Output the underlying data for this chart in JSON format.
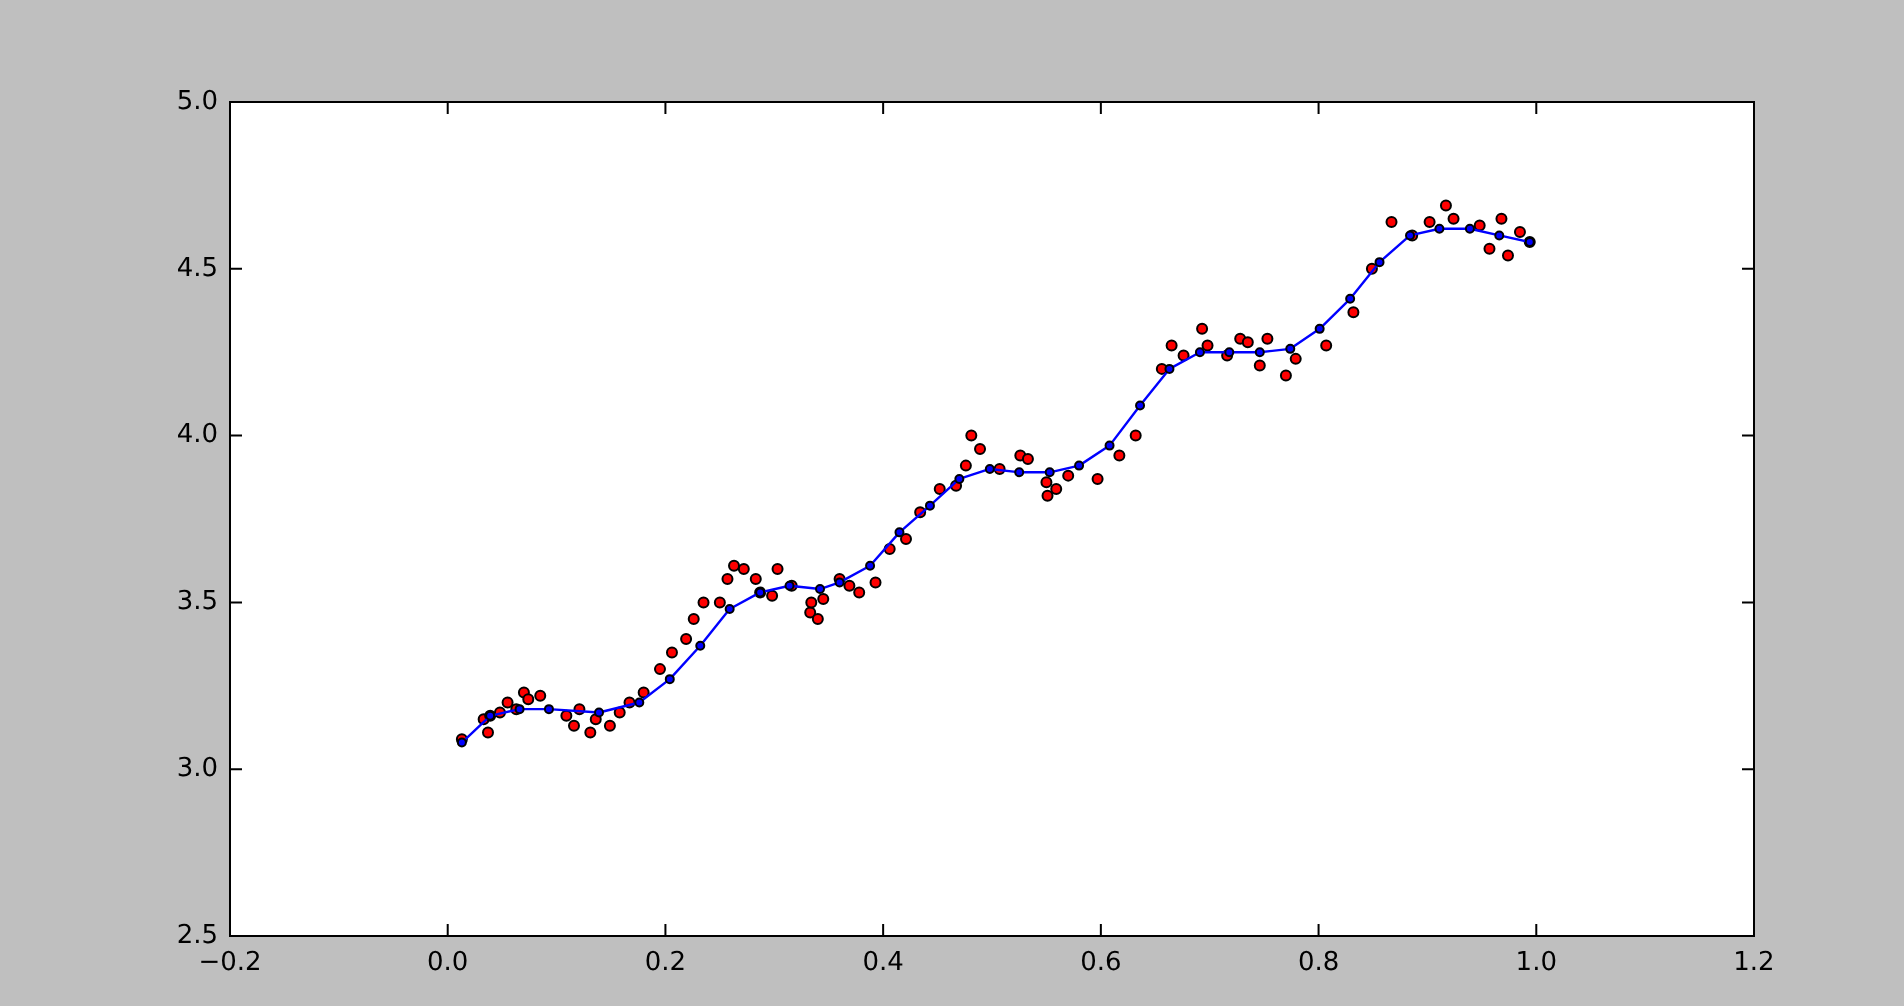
{
  "chart_data": {
    "type": "scatter",
    "marker": "circle",
    "grid": false,
    "legend": false,
    "xlim": [
      -0.2,
      1.2
    ],
    "xticks": [
      {
        "value": -0.2,
        "label": "−0.2"
      },
      {
        "value": 0,
        "label": "0.0"
      },
      0.2,
      0.4,
      0.6,
      0.8,
      {
        "value": 1,
        "label": "1.0"
      },
      1.2
    ],
    "ylim": [
      2.5,
      5
    ],
    "yticks": [
      2.5,
      {
        "value": 3,
        "label": "3.0"
      },
      3.5,
      {
        "value": 4,
        "label": "4.0"
      },
      4.5,
      {
        "value": 5,
        "label": "5.0"
      }
    ],
    "series": [
      {
        "color": "#ff0000",
        "x": [
          0.013,
          0.033,
          0.037,
          0.039,
          0.048,
          0.055,
          0.063,
          0.07,
          0.074,
          0.085,
          0.109,
          0.116,
          0.121,
          0.131,
          0.136,
          0.149,
          0.158,
          0.167,
          0.18,
          0.195,
          0.206,
          0.219,
          0.226,
          0.235,
          0.25,
          0.257,
          0.263,
          0.272,
          0.283,
          0.287,
          0.298,
          0.303,
          0.316,
          0.333,
          0.334,
          0.34,
          0.345,
          0.36,
          0.369,
          0.378,
          0.393,
          0.406,
          0.421,
          0.434,
          0.452,
          0.467,
          0.476,
          0.481,
          0.489,
          0.507,
          0.526,
          0.533,
          0.55,
          0.551,
          0.559,
          0.57,
          0.597,
          0.617,
          0.632,
          0.656,
          0.665,
          0.676,
          0.693,
          0.698,
          0.716,
          0.728,
          0.735,
          0.746,
          0.753,
          0.77,
          0.779,
          0.807,
          0.832,
          0.849,
          0.867,
          0.886,
          0.902,
          0.917,
          0.924,
          0.948,
          0.957,
          0.968,
          0.974,
          0.985,
          0.994
        ],
        "values": [
          3.09,
          3.15,
          3.11,
          3.16,
          3.17,
          3.2,
          3.18,
          3.23,
          3.21,
          3.22,
          3.16,
          3.13,
          3.18,
          3.11,
          3.15,
          3.13,
          3.17,
          3.2,
          3.23,
          3.3,
          3.35,
          3.39,
          3.45,
          3.5,
          3.5,
          3.57,
          3.61,
          3.6,
          3.57,
          3.53,
          3.52,
          3.6,
          3.55,
          3.47,
          3.5,
          3.45,
          3.51,
          3.57,
          3.55,
          3.53,
          3.56,
          3.66,
          3.69,
          3.77,
          3.84,
          3.85,
          3.91,
          4.0,
          3.96,
          3.9,
          3.94,
          3.93,
          3.86,
          3.82,
          3.84,
          3.88,
          3.87,
          3.94,
          4.0,
          4.2,
          4.27,
          4.24,
          4.32,
          4.27,
          4.24,
          4.29,
          4.28,
          4.21,
          4.29,
          4.18,
          4.23,
          4.27,
          4.37,
          4.5,
          4.64,
          4.6,
          4.64,
          4.69,
          4.65,
          4.63,
          4.56,
          4.65,
          4.54,
          4.61,
          4.58
        ]
      },
      {
        "type": "line",
        "color": "#0000ff",
        "x": [
          0.013,
          0.039,
          0.066,
          0.093,
          0.139,
          0.176,
          0.204,
          0.232,
          0.259,
          0.287,
          0.314,
          0.342,
          0.36,
          0.388,
          0.415,
          0.443,
          0.47,
          0.498,
          0.525,
          0.553,
          0.58,
          0.608,
          0.636,
          0.663,
          0.691,
          0.718,
          0.746,
          0.774,
          0.801,
          0.829,
          0.856,
          0.884,
          0.911,
          0.939,
          0.966,
          0.994
        ],
        "values": [
          3.08,
          3.16,
          3.18,
          3.18,
          3.17,
          3.2,
          3.27,
          3.37,
          3.48,
          3.53,
          3.55,
          3.54,
          3.56,
          3.61,
          3.71,
          3.79,
          3.87,
          3.9,
          3.89,
          3.89,
          3.91,
          3.97,
          4.09,
          4.2,
          4.25,
          4.25,
          4.25,
          4.26,
          4.32,
          4.41,
          4.52,
          4.6,
          4.62,
          4.62,
          4.6,
          4.58
        ]
      }
    ]
  }
}
